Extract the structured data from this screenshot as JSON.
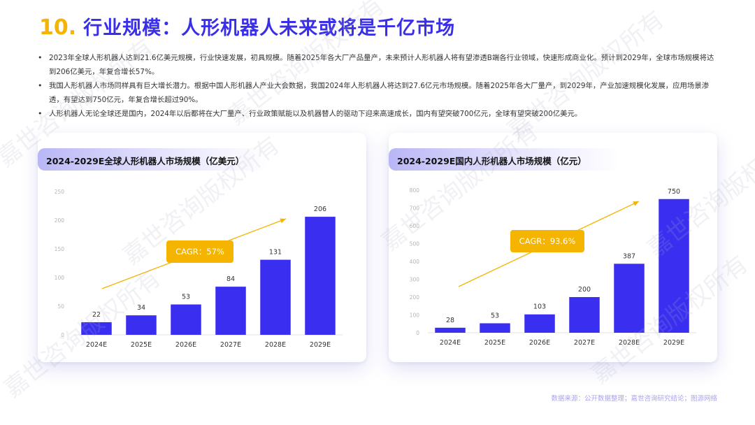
{
  "header": {
    "number": "10.",
    "title": "行业规模：人形机器人未来或将是千亿市场"
  },
  "bullets": [
    "2023年全球人形机器人达到21.6亿美元规模，行业快速发展，初具规模。随着2025年各大厂产品量产，未来预计人形机器人将有望渗透B端各行业领域，快速形成商业化。预计到2029年，全球市场规模将达到206亿美元，年复合增长57%。",
    "我国人形机器人市场同样具有巨大增长潜力。根据中国人形机器人产业大会数据，我国2024年人形机器人将达到27.6亿元市场规模。随着2025年各大厂量产，到2029年，产业加速规模化发展，应用场景渗透，有望达到750亿元，年复合增长超过90%。",
    "人形机器人无论全球还是国内，2024年以后都将在大厂量产、行业政策赋能以及机器替人的驱动下迎来高速成长，国内有望突破700亿元，全球有望突破200亿美元。"
  ],
  "colors": {
    "bar": "#3A2FF0",
    "accent": "#F4B400",
    "title": "#3A2FE8"
  },
  "chart_data": [
    {
      "type": "bar",
      "title": "2024-2029E全球人形机器人市场规模（亿美元）",
      "categories": [
        "2024E",
        "2025E",
        "2026E",
        "2027E",
        "2028E",
        "2029E"
      ],
      "values": [
        22,
        34,
        53,
        84,
        131,
        206
      ],
      "yticks": [
        "0",
        "50",
        "100",
        "150",
        "200",
        "250"
      ],
      "ylim": [
        0,
        250
      ],
      "annotation": "CAGR：57%",
      "grid": false
    },
    {
      "type": "bar",
      "title": "2024-2029E国内人形机器人市场规模（亿元）",
      "categories": [
        "2024E",
        "2025E",
        "2026E",
        "2027E",
        "2028E",
        "2029E"
      ],
      "values": [
        28,
        53,
        103,
        200,
        387,
        750
      ],
      "yticks": [
        "0",
        "100",
        "200",
        "300",
        "400",
        "500",
        "600",
        "700",
        "800"
      ],
      "ylim": [
        0,
        800
      ],
      "annotation": "CAGR：93.6%",
      "grid": false
    }
  ],
  "source": "数据来源：公开数据整理；嘉世咨询研究结论；图源网络",
  "watermark": "嘉世咨询版权所有"
}
